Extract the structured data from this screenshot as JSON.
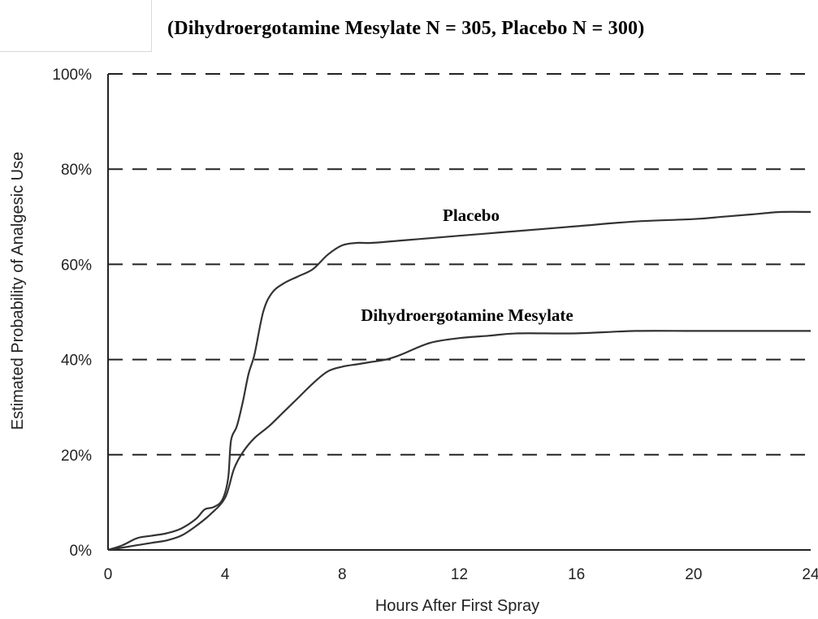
{
  "chart_data": {
    "type": "line",
    "title": "",
    "subtitle": "(Dihydroergotamine  Mesylate N = 305, Placebo N = 300)",
    "xlabel": "Hours After First Spray",
    "ylabel": "Estimated Probability of Analgesic Use",
    "xlim": [
      0,
      24
    ],
    "ylim": [
      0,
      100
    ],
    "x_ticks": [
      0,
      4,
      8,
      12,
      16,
      20,
      24
    ],
    "x_tick_labels": [
      "0",
      "4",
      "8",
      "12",
      "16",
      "20",
      "24"
    ],
    "y_ticks": [
      0,
      20,
      40,
      60,
      80,
      100
    ],
    "y_tick_labels": [
      "0%",
      "20%",
      "40%",
      "60%",
      "80%",
      "100%"
    ],
    "grid": "horizontal dashed",
    "series": [
      {
        "name": "Placebo",
        "color": "#333333",
        "x": [
          0,
          0.5,
          1,
          1.5,
          2,
          2.5,
          3,
          3.3,
          3.6,
          3.9,
          4.1,
          4.2,
          4.4,
          4.6,
          4.8,
          5,
          5.3,
          5.6,
          6,
          6.5,
          7,
          7.5,
          8,
          8.5,
          9,
          10,
          11,
          12,
          13,
          14,
          16,
          18,
          20,
          21,
          22,
          23,
          24
        ],
        "y": [
          0,
          1,
          2.5,
          3,
          3.5,
          4.5,
          6.5,
          8.5,
          9,
          10.5,
          15,
          23,
          26,
          31,
          37,
          41,
          50,
          54,
          56,
          57.5,
          59,
          62,
          64,
          64.5,
          64.5,
          65,
          65.5,
          66,
          66.5,
          67,
          68,
          69,
          69.5,
          70,
          70.5,
          71,
          71
        ]
      },
      {
        "name": "Dihydroergotamine  Mesylate",
        "color": "#333333",
        "x": [
          0,
          0.5,
          1,
          1.5,
          2,
          2.5,
          3,
          3.5,
          4,
          4.3,
          4.6,
          5,
          5.5,
          6,
          6.5,
          7,
          7.5,
          8,
          8.5,
          9,
          9.5,
          10,
          11,
          12,
          13,
          14,
          16,
          18,
          20,
          22,
          24
        ],
        "y": [
          0,
          0.5,
          1,
          1.5,
          2,
          3,
          5,
          7.5,
          11,
          17,
          20.5,
          23.5,
          26,
          29,
          32,
          35,
          37.5,
          38.5,
          39,
          39.5,
          40,
          41,
          43.5,
          44.5,
          45,
          45.5,
          45.5,
          46,
          46,
          46,
          46
        ]
      }
    ]
  }
}
